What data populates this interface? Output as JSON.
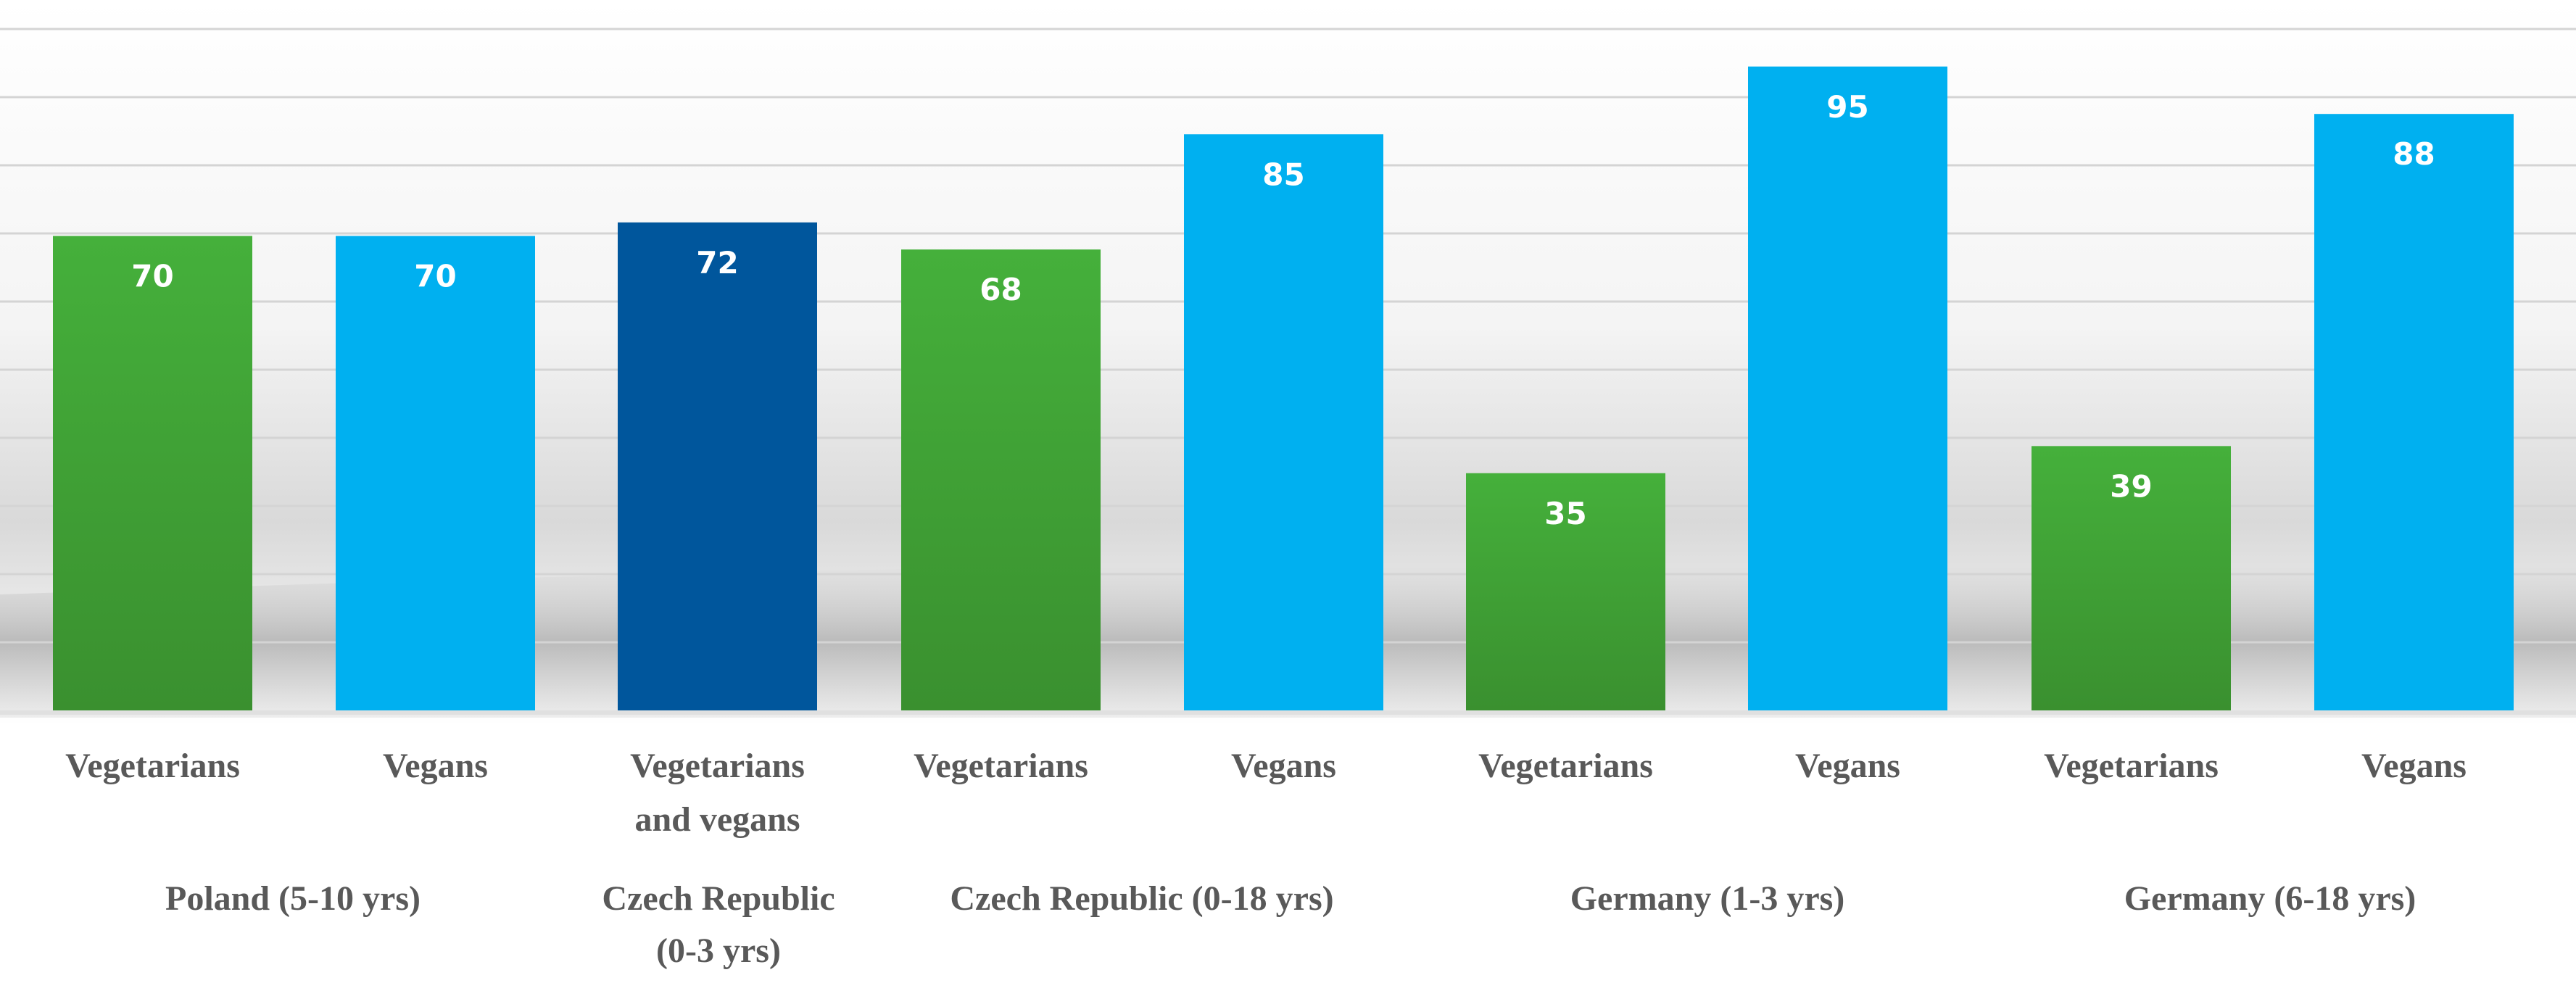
{
  "chart_data": {
    "type": "bar",
    "ylim": [
      0,
      100
    ],
    "grid": true,
    "bars": [
      {
        "group": "Poland  (5-10 yrs)",
        "category": [
          "Vegetarians"
        ],
        "value": 70,
        "color": "#3f9f35"
      },
      {
        "group": "Poland  (5-10 yrs)",
        "category": [
          "Vegans"
        ],
        "value": 70,
        "color": "#00b0f0"
      },
      {
        "group": "Czech Republic (0-3 yrs)",
        "category": [
          "Vegetarians",
          "and vegans"
        ],
        "value": 72,
        "color": "#00569c"
      },
      {
        "group": "Czech Republic (0-18 yrs)",
        "category": [
          "Vegetarians"
        ],
        "value": 68,
        "color": "#3f9f35"
      },
      {
        "group": "Czech Republic (0-18 yrs)",
        "category": [
          "Vegans"
        ],
        "value": 85,
        "color": "#00b0f0"
      },
      {
        "group": "Germany (1-3 yrs)",
        "category": [
          "Vegetarians"
        ],
        "value": 35,
        "color": "#3f9f35"
      },
      {
        "group": "Germany (1-3 yrs)",
        "category": [
          "Vegans"
        ],
        "value": 95,
        "color": "#00b0f0"
      },
      {
        "group": "Germany (6-18 yrs)",
        "category": [
          "Vegetarians"
        ],
        "value": 39,
        "color": "#3f9f35"
      },
      {
        "group": "Germany (6-18 yrs)",
        "category": [
          "Vegans"
        ],
        "value": 88,
        "color": "#00b0f0"
      }
    ],
    "groups": [
      {
        "lines": [
          "Poland  (5-10 yrs)"
        ]
      },
      {
        "lines": [
          "Czech Republic",
          "(0-3 yrs)"
        ]
      },
      {
        "lines": [
          "Czech Republic (0-18 yrs)"
        ]
      },
      {
        "lines": [
          "Germany (1-3 yrs)"
        ]
      },
      {
        "lines": [
          "Germany (6-18 yrs)"
        ]
      }
    ]
  }
}
